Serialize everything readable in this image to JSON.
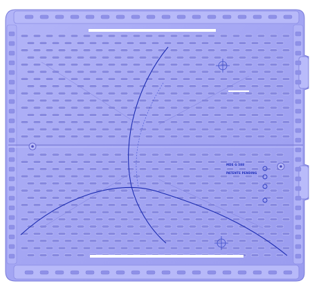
{
  "model": {
    "label_line_1": "MDE G 588",
    "label_line_2": "PATENTE PENDING"
  },
  "colors": {
    "tray_fill": "#a4a6f4",
    "tray_shade": "#8f91e8",
    "tray_light": "#c6c8fb",
    "slot_fill": "#8688df",
    "slot_edge": "#c8cafc",
    "curve_stroke": "#1b2bb0",
    "highlight": "#ffffff"
  }
}
